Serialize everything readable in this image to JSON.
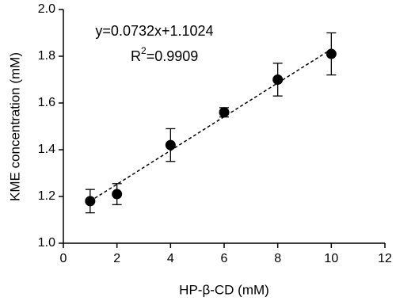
{
  "chart_data": {
    "type": "scatter",
    "x_label": "HP-β-CD (mM)",
    "y_label": "KME concentration (mM)",
    "annotations": {
      "equation": "y=0.0732x+1.1024",
      "r2_base": "R",
      "r2_sup": "2",
      "r2_rest": "=0.9909"
    },
    "series": [
      {
        "color": "#000000",
        "x": [
          1,
          2,
          4,
          6,
          8,
          10
        ],
        "values": [
          1.18,
          1.21,
          1.42,
          1.56,
          1.7,
          1.81
        ],
        "errors": [
          0.05,
          0.045,
          0.07,
          0.02,
          0.07,
          0.09
        ]
      },
      {
        "color": "#000000",
        "x": [
          1,
          10
        ],
        "values": [
          1.18,
          1.83
        ],
        "dashed": true
      }
    ],
    "xlim": [
      0,
      12
    ],
    "xticks": [
      0,
      2,
      4,
      6,
      8,
      10,
      12
    ],
    "ylim": [
      1,
      2
    ],
    "yticks": [
      {
        "value": 1,
        "label": "1.0"
      },
      1.2,
      1.4,
      1.6,
      1.8,
      {
        "value": 2,
        "label": "2.0"
      }
    ]
  }
}
